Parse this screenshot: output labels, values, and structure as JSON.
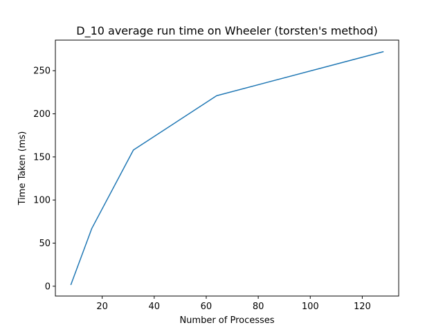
{
  "chart_data": {
    "type": "line",
    "title": "D_10 average run time on Wheeler (torsten's method)",
    "xlabel": "Number of Processes",
    "ylabel": "Time Taken (ms)",
    "xlim": [
      2,
      134
    ],
    "ylim": [
      -11.4,
      285.5
    ],
    "xticks": [
      20,
      40,
      60,
      80,
      100,
      120
    ],
    "yticks": [
      0,
      50,
      100,
      150,
      200,
      250
    ],
    "grid": false,
    "series": [
      {
        "color": "#1f77b4",
        "x": [
          8,
          16,
          32,
          64,
          128
        ],
        "y": [
          2,
          67,
          158,
          221,
          272
        ]
      }
    ]
  }
}
